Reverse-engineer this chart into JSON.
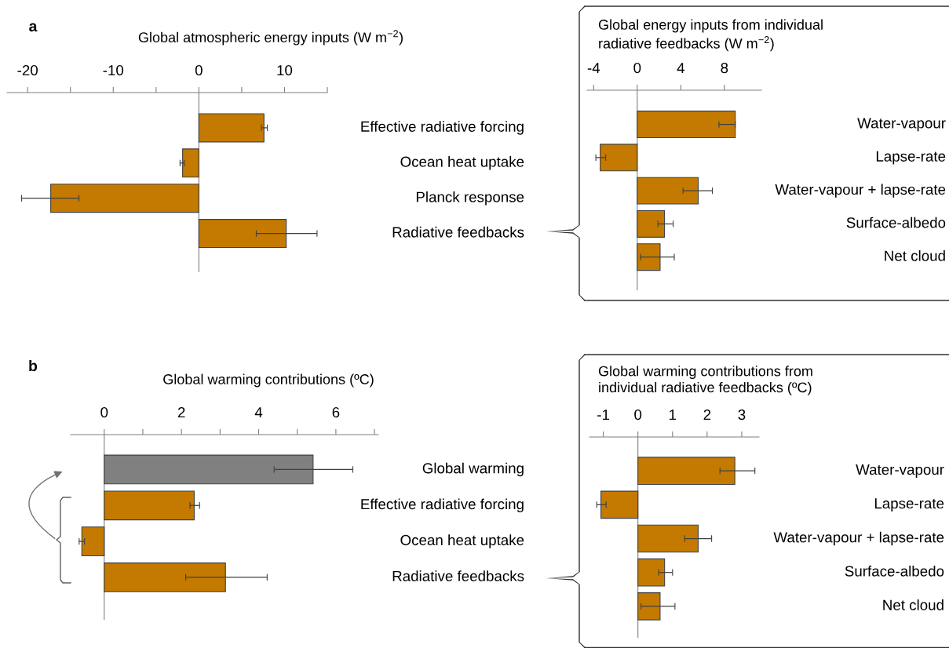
{
  "chart_data": [
    {
      "type": "bar",
      "orientation": "horizontal",
      "xlabel": "Global atmospheric energy inputs (W m$^{−2}$)",
      "ref_lines": [
        {
          "axis": "x",
          "value": 0
        }
      ],
      "annotations": [
        "a"
      ],
      "categories": [
        "Effective radiative forcing",
        "Ocean heat uptake",
        "Planck response",
        "Radiative feedbacks"
      ],
      "values": [
        7.6,
        -1.9,
        -17.3,
        10.2
      ],
      "colors": [
        "#c47a00",
        "#c47a00",
        "#c47a00",
        "#c47a00"
      ],
      "errors": [
        [
          7.3,
          8.0
        ],
        [
          -2.2,
          -1.7
        ],
        [
          -20.7,
          -14.0
        ],
        [
          6.7,
          13.8
        ]
      ],
      "xlim": [
        -22.4,
        15
      ],
      "xticks": [
        -20,
        {
          "value": -15,
          "label": null
        },
        -10,
        {
          "value": -5,
          "label": null
        },
        0,
        {
          "value": 5,
          "label": null
        },
        10,
        {
          "value": 15,
          "label": null
        }
      ],
      "grid": false
    },
    {
      "type": "bar",
      "orientation": "horizontal",
      "xlabel": "Global energy inputs from individual\nradiative feedbacks (W m$^{−2}$)",
      "ref_lines": [
        {
          "axis": "x",
          "value": 0
        }
      ],
      "categories": [
        "Water-vapour",
        "Lapse-rate",
        "Water-vapour + lapse-rate",
        "Surface-albedo",
        "Net cloud"
      ],
      "values": [
        9.0,
        -3.4,
        5.6,
        2.5,
        2.1
      ],
      "colors": [
        "#c47a00",
        "#c47a00",
        "#c47a00",
        "#c47a00",
        "#c47a00"
      ],
      "errors": [
        [
          7.5,
          9.0
        ],
        [
          -3.8,
          -2.9
        ],
        [
          4.2,
          6.9
        ],
        [
          1.9,
          3.3
        ],
        [
          0.3,
          3.4
        ]
      ],
      "xlim": [
        -4.6,
        11.4
      ],
      "xticks": [
        -4,
        0,
        4,
        8
      ],
      "grid": false
    },
    {
      "type": "bar",
      "orientation": "horizontal",
      "xlabel": "Global warming contributions (ºC)",
      "ref_lines": [
        {
          "axis": "x",
          "value": 0
        }
      ],
      "annotations": [
        "b"
      ],
      "categories": [
        "Global warming",
        "Effective radiative forcing",
        "Ocean heat uptake",
        "Radiative feedbacks"
      ],
      "values": [
        5.41,
        2.33,
        -0.58,
        3.14
      ],
      "colors": [
        "#808080",
        "#c47a00",
        "#c47a00",
        "#c47a00"
      ],
      "errors": [
        [
          4.4,
          6.44
        ],
        [
          2.22,
          2.47
        ],
        [
          -0.65,
          -0.51
        ],
        [
          2.11,
          4.22
        ]
      ],
      "xlim": [
        -0.87,
        7.1
      ],
      "xticks": [
        0,
        {
          "value": 1,
          "label": null
        },
        2,
        {
          "value": 3,
          "label": null
        },
        4,
        {
          "value": 5,
          "label": null
        },
        6,
        {
          "value": 7,
          "label": null
        }
      ],
      "grid": false
    },
    {
      "type": "bar",
      "orientation": "horizontal",
      "xlabel": "Global warming contributions from\nindividual radiative feedbacks (ºC)",
      "ref_lines": [
        {
          "axis": "x",
          "value": 0
        }
      ],
      "categories": [
        "Water-vapour",
        "Lapse-rate",
        "Water-vapour + lapse-rate",
        "Surface-albedo",
        "Net cloud"
      ],
      "values": [
        2.8,
        -1.07,
        1.74,
        0.77,
        0.64
      ],
      "colors": [
        "#c47a00",
        "#c47a00",
        "#c47a00",
        "#c47a00",
        "#c47a00"
      ],
      "errors": [
        [
          2.37,
          3.38
        ],
        [
          -1.19,
          -0.92
        ],
        [
          1.35,
          2.13
        ],
        [
          0.6,
          1.0
        ],
        [
          0.09,
          1.07
        ]
      ],
      "xlim": [
        -1.4,
        3.5
      ],
      "xticks": [
        -1,
        0,
        1,
        2,
        3
      ],
      "grid": false
    }
  ]
}
